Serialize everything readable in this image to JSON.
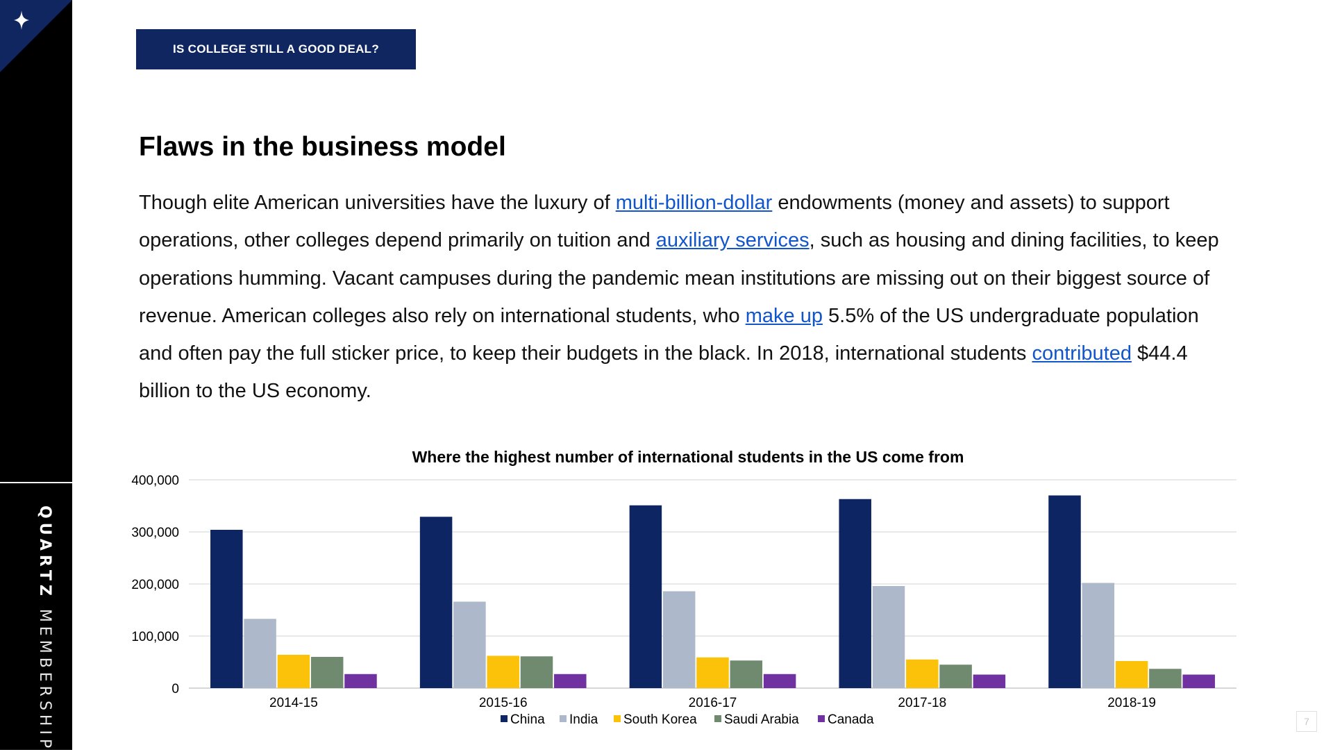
{
  "sidebar": {
    "brand_bold": "QUARTZ",
    "brand_light": "MEMBERSHIP",
    "logo_icon": "sparkle-icon"
  },
  "section_label": "IS COLLEGE STILL A GOOD DEAL?",
  "page_title": "Flaws in the business model",
  "body": {
    "t1": "Though elite American universities have the luxury of ",
    "link1": "multi-billion-dollar",
    "t2": " endowments (money and assets) to support operations, other colleges depend primarily on tuition and ",
    "link2": "auxiliary services",
    "t3": ", such as housing and dining facilities, to keep operations humming. Vacant campuses during the pandemic mean institutions are missing out on their biggest source of revenue. American colleges also rely on international students, who ",
    "link3": "make up",
    "t4": " 5.5% of the US undergraduate population and often pay the full sticker price, to keep their budgets in the black. In 2018, international students ",
    "link4": "contributed",
    "t5": " $44.4 billion to the US economy."
  },
  "page_number": "7",
  "chart_data": {
    "type": "bar",
    "title": "Where the highest number of international students in the US come from",
    "xlabel": "",
    "ylabel": "",
    "ylim": [
      0,
      400000
    ],
    "y_ticks": [
      "0",
      "100,000",
      "200,000",
      "300,000",
      "400,000"
    ],
    "y_tick_values": [
      0,
      100000,
      200000,
      300000,
      400000
    ],
    "grid": true,
    "legend_position": "bottom",
    "categories": [
      "2014-15",
      "2015-16",
      "2016-17",
      "2017-18",
      "2018-19"
    ],
    "series": [
      {
        "name": "China",
        "color": "#0d2562",
        "values": [
          304000,
          329000,
          351000,
          363000,
          370000
        ]
      },
      {
        "name": "India",
        "color": "#adb9ca",
        "values": [
          133000,
          166000,
          186000,
          196000,
          202000
        ]
      },
      {
        "name": "South Korea",
        "color": "#fcc20a",
        "values": [
          64000,
          62000,
          59000,
          55000,
          52000
        ]
      },
      {
        "name": "Saudi Arabia",
        "color": "#6f8a6e",
        "values": [
          60000,
          61000,
          53000,
          45000,
          37000
        ]
      },
      {
        "name": "Canada",
        "color": "#7032a0",
        "values": [
          27000,
          27000,
          27000,
          26000,
          26000
        ]
      }
    ]
  }
}
